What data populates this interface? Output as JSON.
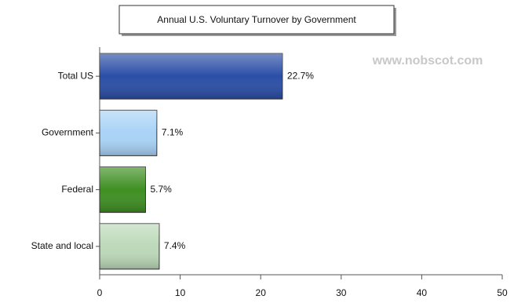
{
  "chart_data": {
    "type": "bar",
    "orientation": "horizontal",
    "title": "Annual U.S. Voluntary Turnover by Government",
    "watermark": "www.nobscot.com",
    "categories": [
      "Total US",
      "Government",
      "Federal",
      "State and local"
    ],
    "values": [
      22.7,
      7.1,
      5.7,
      7.4
    ],
    "value_labels": [
      "22.7%",
      "7.1%",
      "5.7%",
      "7.4%"
    ],
    "colors": [
      "#2b4ea6",
      "#a9d3f7",
      "#3f8f22",
      "#bcd9b9"
    ],
    "xlim": [
      0,
      50
    ],
    "xticks": [
      0,
      10,
      20,
      30,
      40,
      50
    ]
  }
}
